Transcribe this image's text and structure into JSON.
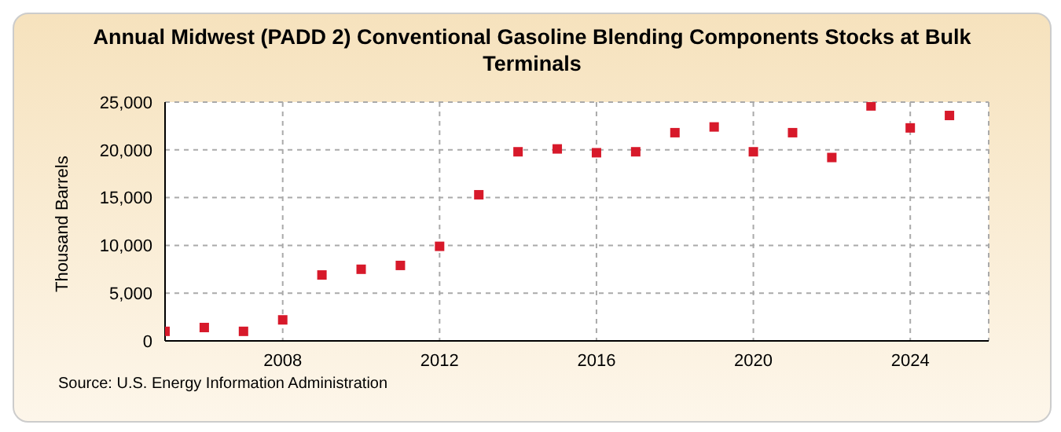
{
  "chart_data": {
    "type": "scatter",
    "title": "Annual Midwest (PADD 2) Conventional Gasoline Blending Components Stocks at Bulk Terminals",
    "ylabel": "Thousand Barrels",
    "x": [
      2005,
      2006,
      2007,
      2008,
      2009,
      2010,
      2011,
      2012,
      2013,
      2014,
      2015,
      2016,
      2017,
      2018,
      2019,
      2020,
      2021,
      2022,
      2023,
      2024,
      2025
    ],
    "series": [
      {
        "color": "#d7192a",
        "values": [
          1000,
          1400,
          1000,
          2200,
          6900,
          7500,
          7900,
          9900,
          15300,
          19800,
          20100,
          19700,
          19800,
          21800,
          22400,
          19800,
          21800,
          19200,
          24600,
          22300,
          23600
        ]
      }
    ],
    "xlim": [
      2005,
      2026
    ],
    "xticks": [
      2008,
      2012,
      2016,
      2020,
      2024
    ],
    "ylim": [
      0,
      25000
    ],
    "yticks": [
      0,
      {
        "value": 5000,
        "label": "5,000"
      },
      {
        "value": 10000,
        "label": "10,000"
      },
      {
        "value": 15000,
        "label": "15,000"
      },
      {
        "value": 20000,
        "label": "20,000"
      },
      {
        "value": 25000,
        "label": "25,000"
      }
    ],
    "grid": true,
    "marker": "square",
    "annotations": [
      "Source: U.S. Energy Information Administration"
    ]
  }
}
